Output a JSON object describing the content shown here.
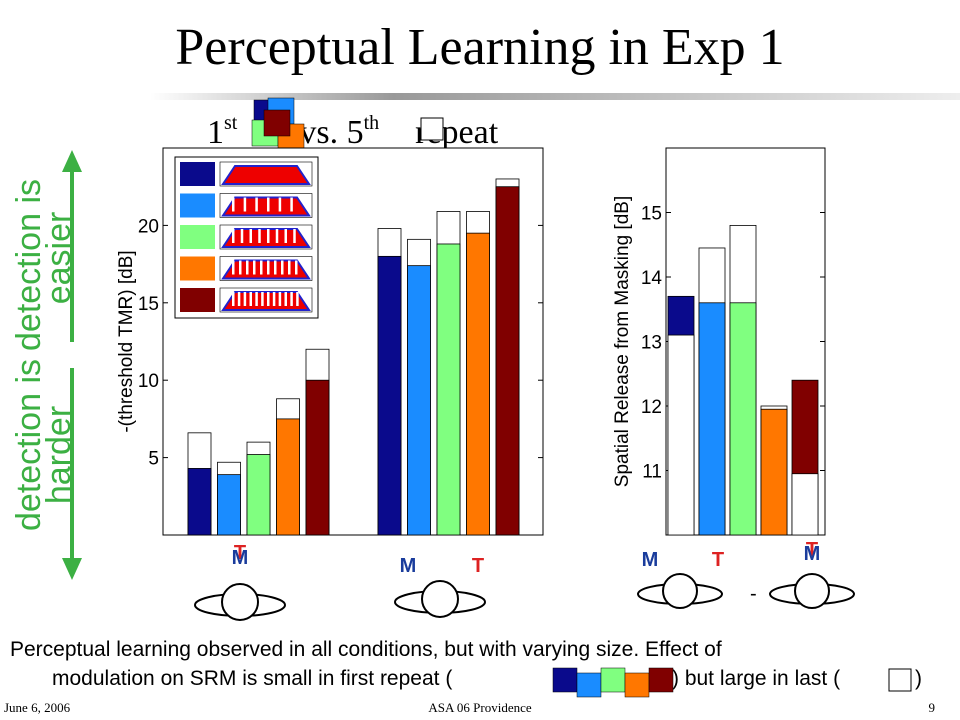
{
  "title": "Perceptual Learning in Exp 1",
  "subtitle": {
    "a": "1",
    "a_sup": "st",
    "b": "vs. 5",
    "b_sup": "th",
    "c": "repeat"
  },
  "side": {
    "line1": "detection is",
    "up": "easier",
    "down": "harder"
  },
  "chart_data": [
    {
      "type": "bar",
      "ylabel": "-(threshold TMR) [dB]",
      "ylim": [
        0,
        25
      ],
      "yticks": [
        5,
        10,
        15,
        20
      ],
      "series": [
        {
          "color": "#0a0a8c",
          "first": [
            4.3,
            18.0
          ],
          "fifth": [
            6.6,
            19.8
          ]
        },
        {
          "color": "#1a8cff",
          "first": [
            3.9,
            17.4
          ],
          "fifth": [
            4.7,
            19.1
          ]
        },
        {
          "color": "#80ff80",
          "first": [
            5.2,
            18.8
          ],
          "fifth": [
            6.0,
            20.9
          ]
        },
        {
          "color": "#ff7700",
          "first": [
            7.5,
            19.5
          ],
          "fifth": [
            8.8,
            20.9
          ]
        },
        {
          "color": "#800000",
          "first": [
            10.0,
            22.5
          ],
          "fifth": [
            12.0,
            23.0
          ]
        }
      ]
    },
    {
      "type": "bar",
      "ylabel": "Spatial Release from Masking [dB]",
      "ylim": [
        10,
        16
      ],
      "yticks": [
        11,
        12,
        13,
        14,
        15
      ],
      "series": [
        {
          "color": "#0a0a8c",
          "first": [
            13.7
          ],
          "fifth": [
            13.1
          ]
        },
        {
          "color": "#1a8cff",
          "first": [
            13.6
          ],
          "fifth": [
            14.45
          ]
        },
        {
          "color": "#80ff80",
          "first": [
            13.6
          ],
          "fifth": [
            14.8
          ]
        },
        {
          "color": "#ff7700",
          "first": [
            11.95
          ],
          "fifth": [
            12.0
          ]
        },
        {
          "color": "#800000",
          "first": [
            12.4
          ],
          "fifth": [
            10.95
          ]
        }
      ]
    }
  ],
  "positions": {
    "T": "T",
    "M": "M",
    "minus": "-"
  },
  "caption": {
    "line1": "Perceptual learning observed in all conditions, but with varying size.  Effect of",
    "line2a": "modulation on SRM is small in first repeat (",
    "line2b": ") but large in last (",
    "line2c": ")"
  },
  "footer": {
    "date": "June 6, 2006",
    "venue": "ASA 06 Providence",
    "page": "9"
  }
}
